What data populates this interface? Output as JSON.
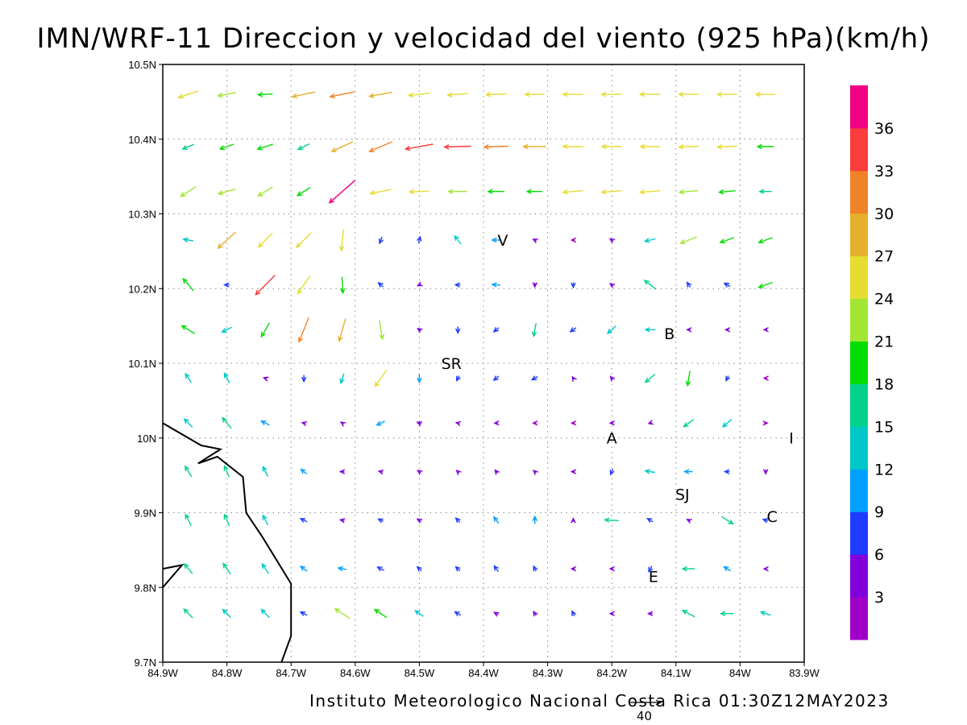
{
  "title": "IMN/WRF-11 Direccion y velocidad del viento (925 hPa)(km/h)",
  "credit": "Instituto Meteorologico Nacional Costa Rica 01:30Z12MAY2023",
  "reference_vector": {
    "label": "40",
    "value": 40
  },
  "axes": {
    "x_ticks": [
      "84.9W",
      "84.8W",
      "84.7W",
      "84.6W",
      "84.5W",
      "84.4W",
      "84.3W",
      "84.2W",
      "84.1W",
      "84W",
      "83.9W"
    ],
    "y_ticks": [
      "9.7N",
      "9.8N",
      "9.9N",
      "10N",
      "10.1N",
      "10.2N",
      "10.3N",
      "10.4N",
      "10.5N"
    ],
    "lon_range": [
      -84.9,
      -83.9
    ],
    "lat_range": [
      9.7,
      10.5
    ],
    "grid": true
  },
  "colorbar": {
    "ticks": [
      "3",
      "6",
      "9",
      "12",
      "15",
      "18",
      "21",
      "24",
      "27",
      "30",
      "33",
      "36"
    ],
    "bins": [
      {
        "min": 0,
        "max": 3,
        "color": "#a000c8"
      },
      {
        "min": 3,
        "max": 6,
        "color": "#8200dc"
      },
      {
        "min": 6,
        "max": 9,
        "color": "#1e3cff"
      },
      {
        "min": 9,
        "max": 12,
        "color": "#00a0ff"
      },
      {
        "min": 12,
        "max": 15,
        "color": "#00c8c8"
      },
      {
        "min": 15,
        "max": 18,
        "color": "#00d28c"
      },
      {
        "min": 18,
        "max": 21,
        "color": "#00dc00"
      },
      {
        "min": 21,
        "max": 24,
        "color": "#a0e632"
      },
      {
        "min": 24,
        "max": 27,
        "color": "#e6dc32"
      },
      {
        "min": 27,
        "max": 30,
        "color": "#e6af2d"
      },
      {
        "min": 30,
        "max": 33,
        "color": "#f08228"
      },
      {
        "min": 33,
        "max": 36,
        "color": "#fa3c3c"
      },
      {
        "min": 36,
        "max": 40,
        "color": "#f00082"
      }
    ]
  },
  "places": [
    {
      "label": "V",
      "lon": -84.37,
      "lat": 10.265
    },
    {
      "label": "SR",
      "lon": -84.45,
      "lat": 10.1
    },
    {
      "label": "B",
      "lon": -84.11,
      "lat": 10.14
    },
    {
      "label": "A",
      "lon": -84.2,
      "lat": 10.0
    },
    {
      "label": "I",
      "lon": -83.92,
      "lat": 10.0
    },
    {
      "label": "SJ",
      "lon": -84.09,
      "lat": 9.925
    },
    {
      "label": "C",
      "lon": -83.95,
      "lat": 9.895
    },
    {
      "label": "E",
      "lon": -84.135,
      "lat": 9.815
    }
  ],
  "coastline": [
    [
      -84.9,
      10.02
    ],
    [
      -84.84,
      9.99
    ],
    [
      -84.81,
      9.985
    ],
    [
      -84.845,
      9.966
    ],
    [
      -84.815,
      9.975
    ],
    [
      -84.775,
      9.948
    ],
    [
      -84.77,
      9.9
    ],
    [
      -84.745,
      9.868
    ],
    [
      -84.7,
      9.805
    ],
    [
      -84.7,
      9.79
    ],
    [
      -84.7,
      9.735
    ],
    [
      -84.715,
      9.7
    ]
  ],
  "coastline2": [
    [
      -84.9,
      9.825
    ],
    [
      -84.87,
      9.83
    ],
    [
      -84.9,
      9.8
    ]
  ],
  "chart_data": {
    "type": "vector_field",
    "variable": "wind direction and speed at 925 hPa (km/h)",
    "lons": [
      -84.86,
      -84.8,
      -84.74,
      -84.68,
      -84.62,
      -84.56,
      -84.5,
      -84.44,
      -84.38,
      -84.32,
      -84.26,
      -84.2,
      -84.14,
      -84.08,
      -84.02,
      -83.96
    ],
    "lats": [
      10.46,
      10.39,
      10.33,
      10.265,
      10.205,
      10.145,
      10.08,
      10.02,
      9.955,
      9.89,
      9.825,
      9.765
    ],
    "vectors_u_v_kmh": [
      [
        [
          -24,
          -8
        ],
        [
          -22,
          -4
        ],
        [
          -18,
          -1
        ],
        [
          -28,
          -6
        ],
        [
          -30,
          -6
        ],
        [
          -28,
          -5
        ],
        [
          -26,
          -3
        ],
        [
          -25,
          -2
        ],
        [
          -25,
          -1
        ],
        [
          -24,
          0
        ],
        [
          -25,
          0
        ],
        [
          -25,
          0
        ],
        [
          -25,
          0
        ],
        [
          -24,
          0
        ],
        [
          -24,
          0
        ],
        [
          -24,
          0
        ]
      ],
      [
        [
          -14,
          -6
        ],
        [
          -17,
          -6
        ],
        [
          -19,
          -6
        ],
        [
          -14,
          -7
        ],
        [
          -26,
          -12
        ],
        [
          -28,
          -12
        ],
        [
          -34,
          -6
        ],
        [
          -33,
          -1
        ],
        [
          -30,
          -1
        ],
        [
          -28,
          0
        ],
        [
          -25,
          0
        ],
        [
          -24,
          0
        ],
        [
          -24,
          0
        ],
        [
          -24,
          -1
        ],
        [
          -24,
          -1
        ],
        [
          -20,
          0
        ]
      ],
      [
        [
          -19,
          -12
        ],
        [
          -21,
          -6
        ],
        [
          -18,
          -11
        ],
        [
          -16,
          -10
        ],
        [
          -32,
          -28
        ],
        [
          -26,
          -5
        ],
        [
          -24,
          -1
        ],
        [
          -23,
          0
        ],
        [
          -20,
          0
        ],
        [
          -19,
          0
        ],
        [
          -25,
          -2
        ],
        [
          -25,
          -2
        ],
        [
          -25,
          -2
        ],
        [
          -23,
          -2
        ],
        [
          -20,
          -2
        ],
        [
          -15,
          0
        ]
      ],
      [
        [
          -12,
          2
        ],
        [
          -22,
          -20
        ],
        [
          -17,
          -17
        ],
        [
          -18,
          -18
        ],
        [
          -3,
          -26
        ],
        [
          -3,
          -8
        ],
        [
          2,
          8
        ],
        [
          -8,
          10
        ],
        [
          -10,
          0
        ],
        [
          -4,
          2
        ],
        [
          -1,
          0
        ],
        [
          -4,
          3
        ],
        [
          -13,
          -3
        ],
        [
          -20,
          -8
        ],
        [
          -17,
          -6
        ],
        [
          -17,
          -6
        ]
      ],
      [
        [
          -13,
          15
        ],
        [
          -6,
          0
        ],
        [
          -24,
          -24
        ],
        [
          -15,
          -22
        ],
        [
          1,
          -20
        ],
        [
          -6,
          5
        ],
        [
          -4,
          -2
        ],
        [
          -6,
          0
        ],
        [
          -10,
          1
        ],
        [
          0,
          -5
        ],
        [
          0,
          -6
        ],
        [
          -4,
          3
        ],
        [
          -14,
          11
        ],
        [
          -4,
          6
        ],
        [
          -7,
          4
        ],
        [
          -17,
          -6
        ]
      ],
      [
        [
          -16,
          10
        ],
        [
          -12,
          -6
        ],
        [
          -10,
          -17
        ],
        [
          -12,
          -30
        ],
        [
          -8,
          -28
        ],
        [
          4,
          -23
        ],
        [
          -4,
          3
        ],
        [
          0,
          -8
        ],
        [
          -6,
          -5
        ],
        [
          -3,
          -16
        ],
        [
          -7,
          -5
        ],
        [
          -10,
          -9
        ],
        [
          -12,
          0
        ],
        [
          -4,
          0
        ],
        [
          -4,
          0
        ],
        [
          -3,
          0
        ]
      ],
      [
        [
          -7,
          11
        ],
        [
          -6,
          12
        ],
        [
          -3,
          1
        ],
        [
          0,
          -8
        ],
        [
          -4,
          -12
        ],
        [
          -14,
          -20
        ],
        [
          0,
          -10
        ],
        [
          -3,
          -6
        ],
        [
          -6,
          -5
        ],
        [
          -7,
          -4
        ],
        [
          -2,
          3
        ],
        [
          -3,
          4
        ],
        [
          -12,
          -10
        ],
        [
          -3,
          -18
        ],
        [
          -3,
          -6
        ],
        [
          -2,
          0
        ]
      ],
      [
        [
          -10,
          10
        ],
        [
          -11,
          13
        ],
        [
          -10,
          5
        ],
        [
          -4,
          1
        ],
        [
          -3,
          2
        ],
        [
          -10,
          -5
        ],
        [
          -5,
          2
        ],
        [
          -4,
          1
        ],
        [
          -3,
          0
        ],
        [
          -2,
          0
        ],
        [
          -2,
          0
        ],
        [
          -4,
          0
        ],
        [
          -3,
          -1
        ],
        [
          -12,
          -9
        ],
        [
          -11,
          -9
        ],
        [
          0,
          0
        ]
      ],
      [
        [
          -8,
          13
        ],
        [
          -6,
          14
        ],
        [
          -6,
          12
        ],
        [
          -7,
          6
        ],
        [
          -5,
          0
        ],
        [
          -5,
          1
        ],
        [
          -4,
          3
        ],
        [
          -3,
          3
        ],
        [
          -3,
          4
        ],
        [
          -3,
          3
        ],
        [
          -3,
          0
        ],
        [
          -3,
          -7
        ],
        [
          -12,
          2
        ],
        [
          -10,
          0
        ],
        [
          -6,
          0
        ],
        [
          0,
          -5
        ]
      ],
      [
        [
          -7,
          14
        ],
        [
          -6,
          14
        ],
        [
          -6,
          12
        ],
        [
          -8,
          4
        ],
        [
          -5,
          1
        ],
        [
          -6,
          3
        ],
        [
          -5,
          3
        ],
        [
          -5,
          5
        ],
        [
          -6,
          8
        ],
        [
          0,
          9
        ],
        [
          0,
          4
        ],
        [
          -17,
          1
        ],
        [
          -7,
          4
        ],
        [
          -4,
          2
        ],
        [
          14,
          -9
        ],
        [
          -6,
          2
        ]
      ],
      [
        [
          -10,
          12
        ],
        [
          -9,
          13
        ],
        [
          -8,
          12
        ],
        [
          -8,
          6
        ],
        [
          -10,
          2
        ],
        [
          -8,
          4
        ],
        [
          -5,
          5
        ],
        [
          -5,
          5
        ],
        [
          -5,
          7
        ],
        [
          -3,
          6
        ],
        [
          -3,
          0
        ],
        [
          -4,
          0
        ],
        [
          -4,
          -7
        ],
        [
          -15,
          0
        ],
        [
          -8,
          5
        ],
        [
          -3,
          0
        ]
      ],
      [
        [
          -11,
          11
        ],
        [
          -10,
          10
        ],
        [
          -10,
          10
        ],
        [
          -8,
          4
        ],
        [
          -18,
          12
        ],
        [
          -15,
          10
        ],
        [
          -10,
          7
        ],
        [
          -7,
          4
        ],
        [
          -5,
          3
        ],
        [
          -3,
          5
        ],
        [
          -3,
          6
        ],
        [
          -4,
          0
        ],
        [
          -5,
          0
        ],
        [
          -15,
          8
        ],
        [
          -16,
          0
        ],
        [
          -12,
          4
        ]
      ]
    ],
    "xlabel": "",
    "ylabel": "",
    "xlim": [
      -84.9,
      -83.9
    ],
    "ylim": [
      9.7,
      10.5
    ],
    "colorbar_label": ""
  }
}
